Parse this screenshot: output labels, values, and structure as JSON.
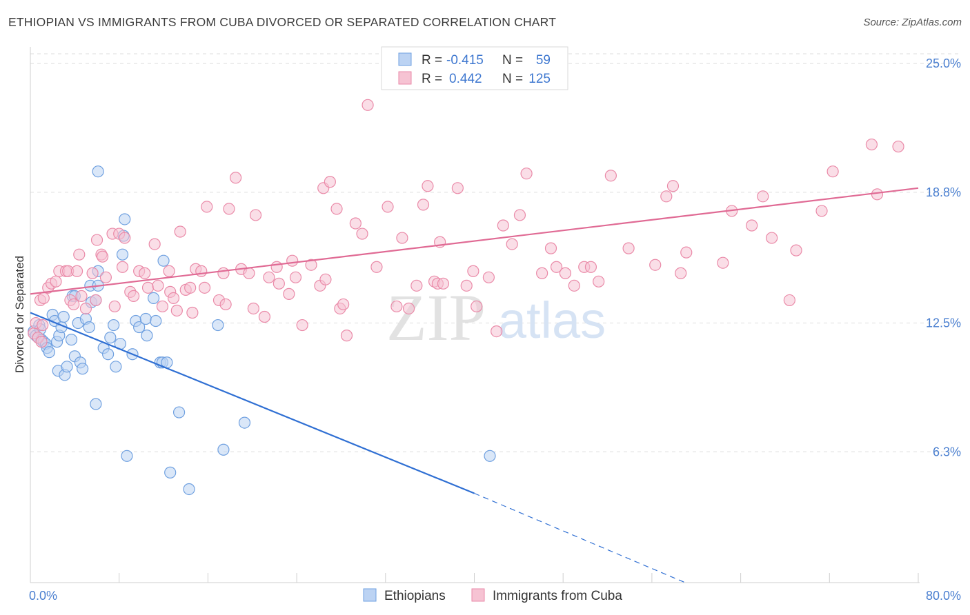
{
  "title": "ETHIOPIAN VS IMMIGRANTS FROM CUBA DIVORCED OR SEPARATED CORRELATION CHART",
  "source": "Source: ZipAtlas.com",
  "watermark": {
    "zip": "ZIP",
    "atlas": "atlas"
  },
  "chart_data": {
    "type": "scatter",
    "ylabel": "Divorced or Separated",
    "xlim": [
      0,
      80
    ],
    "ylim": [
      0,
      25.8
    ],
    "x_tick_labels": [
      "0.0%",
      "80.0%"
    ],
    "y_ticks": [
      6.3,
      12.5,
      18.8,
      25.0
    ],
    "y_tick_labels": [
      "6.3%",
      "12.5%",
      "18.8%",
      "25.0%"
    ],
    "grid": "horizontal dashed",
    "legend_placement": "top-center",
    "bottom_legend": [
      "Ethiopians",
      "Immigrants from Cuba"
    ],
    "stats": [
      {
        "r_label": "R =",
        "r": "-0.415",
        "n_label": "N =",
        "n": "59"
      },
      {
        "r_label": "R =",
        "r": "0.442",
        "n_label": "N =",
        "n": "125"
      }
    ],
    "series": [
      {
        "name": "Ethiopians",
        "color": "#6fa0e0",
        "fill": "#bcd3f3",
        "trend": {
          "x0": 0,
          "y0": 13.0,
          "x1": 40,
          "y1": 4.3,
          "dash_to_x": 59,
          "dash_to_y": 0
        },
        "points": [
          [
            0.3,
            12.1
          ],
          [
            0.5,
            11.9
          ],
          [
            0.7,
            11.8
          ],
          [
            0.8,
            12.4
          ],
          [
            0.9,
            12.2
          ],
          [
            1.0,
            11.7
          ],
          [
            1.2,
            11.6
          ],
          [
            1.4,
            11.5
          ],
          [
            1.5,
            11.3
          ],
          [
            1.7,
            11.1
          ],
          [
            2.0,
            12.9
          ],
          [
            2.2,
            12.6
          ],
          [
            2.4,
            11.6
          ],
          [
            2.6,
            11.9
          ],
          [
            2.8,
            12.3
          ],
          [
            2.5,
            10.2
          ],
          [
            3.0,
            12.8
          ],
          [
            3.1,
            10.0
          ],
          [
            3.3,
            10.4
          ],
          [
            3.7,
            11.7
          ],
          [
            3.8,
            13.8
          ],
          [
            4.0,
            13.8
          ],
          [
            4.0,
            10.9
          ],
          [
            4.3,
            12.5
          ],
          [
            4.5,
            10.6
          ],
          [
            5.0,
            12.7
          ],
          [
            4.7,
            10.3
          ],
          [
            5.4,
            14.3
          ],
          [
            5.5,
            13.5
          ],
          [
            5.3,
            12.3
          ],
          [
            5.9,
            13.6
          ],
          [
            6.1,
            14.3
          ],
          [
            6.1,
            15.0
          ],
          [
            5.9,
            8.6
          ],
          [
            6.6,
            11.3
          ],
          [
            7.0,
            11.0
          ],
          [
            7.2,
            11.8
          ],
          [
            7.5,
            12.4
          ],
          [
            7.7,
            10.4
          ],
          [
            8.1,
            11.5
          ],
          [
            8.3,
            15.8
          ],
          [
            8.4,
            16.7
          ],
          [
            8.5,
            17.5
          ],
          [
            9.2,
            11.0
          ],
          [
            9.5,
            12.6
          ],
          [
            9.8,
            12.3
          ],
          [
            10.4,
            12.7
          ],
          [
            10.5,
            11.9
          ],
          [
            11.1,
            13.7
          ],
          [
            11.3,
            12.6
          ],
          [
            11.7,
            10.6
          ],
          [
            12.0,
            15.5
          ],
          [
            11.9,
            10.6
          ],
          [
            12.3,
            10.6
          ],
          [
            8.7,
            6.1
          ],
          [
            12.6,
            5.3
          ],
          [
            13.4,
            8.2
          ],
          [
            14.3,
            4.5
          ],
          [
            16.9,
            12.4
          ],
          [
            17.4,
            6.4
          ],
          [
            19.3,
            7.7
          ],
          [
            41.4,
            6.1
          ],
          [
            6.1,
            19.8
          ]
        ]
      },
      {
        "name": "Immigrants from Cuba",
        "color": "#ea8aa8",
        "fill": "#f6c3d3",
        "trend": {
          "x0": 0,
          "y0": 13.9,
          "x1": 80,
          "y1": 19.0
        },
        "points": [
          [
            0.3,
            12.0
          ],
          [
            0.5,
            12.5
          ],
          [
            0.7,
            11.8
          ],
          [
            0.9,
            13.6
          ],
          [
            1.1,
            12.4
          ],
          [
            1.2,
            13.7
          ],
          [
            1.6,
            14.2
          ],
          [
            1.9,
            14.4
          ],
          [
            2.3,
            14.5
          ],
          [
            2.6,
            15.0
          ],
          [
            3.2,
            15.0
          ],
          [
            3.4,
            15.0
          ],
          [
            3.6,
            13.6
          ],
          [
            3.9,
            13.4
          ],
          [
            4.2,
            15.0
          ],
          [
            4.4,
            15.8
          ],
          [
            4.6,
            13.8
          ],
          [
            5.0,
            13.2
          ],
          [
            5.6,
            14.9
          ],
          [
            5.9,
            13.6
          ],
          [
            6.0,
            16.5
          ],
          [
            6.4,
            15.8
          ],
          [
            6.5,
            15.7
          ],
          [
            6.8,
            14.7
          ],
          [
            7.4,
            16.8
          ],
          [
            7.6,
            13.3
          ],
          [
            8.0,
            16.8
          ],
          [
            8.3,
            15.2
          ],
          [
            8.5,
            16.6
          ],
          [
            9.0,
            14.0
          ],
          [
            9.3,
            13.8
          ],
          [
            9.8,
            15.0
          ],
          [
            10.3,
            14.9
          ],
          [
            10.6,
            14.2
          ],
          [
            11.2,
            16.3
          ],
          [
            11.5,
            14.3
          ],
          [
            11.9,
            13.3
          ],
          [
            12.5,
            15.0
          ],
          [
            12.6,
            14.0
          ],
          [
            12.9,
            13.7
          ],
          [
            13.2,
            13.1
          ],
          [
            13.5,
            16.9
          ],
          [
            14.0,
            14.1
          ],
          [
            14.4,
            14.2
          ],
          [
            14.6,
            13.0
          ],
          [
            14.9,
            15.1
          ],
          [
            15.4,
            15.0
          ],
          [
            15.7,
            14.2
          ],
          [
            15.9,
            18.1
          ],
          [
            17.0,
            13.6
          ],
          [
            17.4,
            14.9
          ],
          [
            17.6,
            13.4
          ],
          [
            17.9,
            18.0
          ],
          [
            18.5,
            19.5
          ],
          [
            19.0,
            15.1
          ],
          [
            19.7,
            14.9
          ],
          [
            20.1,
            13.2
          ],
          [
            20.3,
            17.7
          ],
          [
            21.1,
            12.8
          ],
          [
            21.5,
            14.7
          ],
          [
            22.2,
            15.2
          ],
          [
            22.4,
            14.4
          ],
          [
            23.3,
            13.9
          ],
          [
            23.6,
            15.5
          ],
          [
            23.9,
            14.7
          ],
          [
            24.5,
            12.4
          ],
          [
            25.3,
            15.3
          ],
          [
            26.1,
            14.3
          ],
          [
            26.4,
            19.0
          ],
          [
            26.6,
            14.6
          ],
          [
            27.0,
            19.3
          ],
          [
            27.6,
            18.0
          ],
          [
            27.9,
            13.2
          ],
          [
            28.2,
            13.4
          ],
          [
            28.5,
            11.9
          ],
          [
            29.3,
            17.3
          ],
          [
            29.9,
            16.8
          ],
          [
            30.4,
            23.0
          ],
          [
            31.2,
            15.2
          ],
          [
            32.2,
            18.1
          ],
          [
            33.0,
            13.3
          ],
          [
            33.5,
            16.6
          ],
          [
            34.1,
            13.2
          ],
          [
            34.8,
            14.3
          ],
          [
            35.4,
            18.2
          ],
          [
            35.8,
            19.1
          ],
          [
            36.4,
            14.5
          ],
          [
            36.7,
            14.4
          ],
          [
            36.9,
            16.4
          ],
          [
            37.2,
            14.4
          ],
          [
            38.5,
            19.0
          ],
          [
            39.3,
            14.3
          ],
          [
            39.9,
            15.0
          ],
          [
            40.2,
            13.3
          ],
          [
            41.3,
            14.7
          ],
          [
            42.0,
            12.1
          ],
          [
            42.6,
            17.2
          ],
          [
            43.4,
            16.3
          ],
          [
            44.1,
            17.7
          ],
          [
            44.7,
            19.7
          ],
          [
            46.1,
            14.9
          ],
          [
            46.9,
            16.1
          ],
          [
            47.4,
            15.2
          ],
          [
            48.2,
            14.9
          ],
          [
            49.0,
            14.3
          ],
          [
            49.9,
            15.2
          ],
          [
            50.5,
            15.2
          ],
          [
            51.2,
            14.5
          ],
          [
            52.3,
            19.6
          ],
          [
            53.9,
            16.1
          ],
          [
            56.3,
            15.3
          ],
          [
            57.3,
            18.6
          ],
          [
            57.9,
            19.1
          ],
          [
            58.6,
            14.9
          ],
          [
            59.1,
            15.9
          ],
          [
            62.4,
            15.4
          ],
          [
            63.2,
            17.9
          ],
          [
            65.0,
            17.2
          ],
          [
            66.0,
            18.6
          ],
          [
            66.8,
            16.6
          ],
          [
            68.4,
            13.6
          ],
          [
            69.0,
            16.0
          ],
          [
            71.3,
            17.9
          ],
          [
            72.3,
            19.8
          ],
          [
            75.8,
            21.1
          ],
          [
            76.3,
            18.7
          ],
          [
            78.2,
            21.0
          ],
          [
            1.0,
            11.6
          ]
        ]
      }
    ]
  }
}
